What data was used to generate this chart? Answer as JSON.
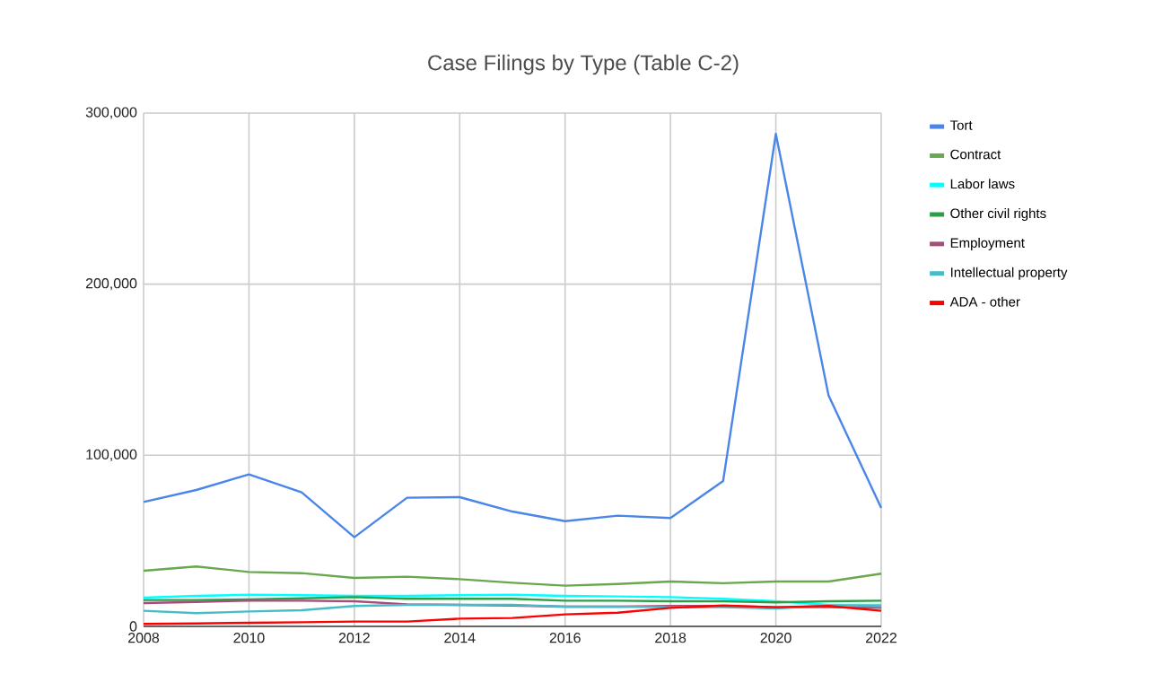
{
  "chart_data": {
    "type": "line",
    "title": "Case Filings by Type (Table C-2)",
    "x": [
      2008,
      2009,
      2010,
      2011,
      2012,
      2013,
      2014,
      2015,
      2016,
      2017,
      2018,
      2019,
      2020,
      2021,
      2022
    ],
    "series": [
      {
        "name": "Tort",
        "color": "#4a86e8",
        "values": [
          72700,
          79700,
          88800,
          78300,
          52100,
          75200,
          75500,
          67100,
          61500,
          64700,
          63300,
          85000,
          287800,
          135000,
          69200
        ]
      },
      {
        "name": "Contract",
        "color": "#6aa84f",
        "values": [
          32500,
          35000,
          31800,
          31100,
          28300,
          29000,
          27600,
          25500,
          23800,
          24800,
          26200,
          25200,
          26200,
          26200,
          30800
        ]
      },
      {
        "name": "Labor laws",
        "color": "#00ffff",
        "values": [
          16800,
          17800,
          18500,
          18200,
          17800,
          17800,
          18200,
          18500,
          17800,
          17500,
          17100,
          16100,
          14700,
          12600,
          12600
        ]
      },
      {
        "name": "Other civil rights",
        "color": "#2e9d48",
        "values": [
          15400,
          15400,
          15700,
          16400,
          17100,
          16100,
          16100,
          16100,
          15000,
          15000,
          14700,
          14700,
          14000,
          14700,
          15000
        ]
      },
      {
        "name": "Employment",
        "color": "#a64d79",
        "values": [
          13600,
          14300,
          15000,
          15000,
          14700,
          12900,
          null,
          12200,
          11500,
          11500,
          11900,
          11900,
          11200,
          11200,
          10800
        ]
      },
      {
        "name": "Intellectual property",
        "color": "#46bdc6",
        "values": [
          9100,
          7700,
          8700,
          9400,
          11900,
          12600,
          12600,
          12600,
          11500,
          11500,
          11200,
          11200,
          10500,
          12200,
          11900
        ]
      },
      {
        "name": "ADA - other",
        "color": "#ff0000",
        "values": [
          1400,
          1700,
          2100,
          2400,
          2800,
          2800,
          4500,
          4900,
          7000,
          8000,
          10800,
          12200,
          11200,
          11900,
          9100
        ]
      }
    ],
    "xlim": [
      2008,
      2022
    ],
    "xticks": [
      2008,
      2010,
      2012,
      2014,
      2016,
      2018,
      2020,
      2022
    ],
    "ylim": [
      0,
      300000
    ],
    "yticks": [
      {
        "value": 0,
        "label": "0"
      },
      {
        "value": 100000,
        "label": "100,000"
      },
      {
        "value": 200000,
        "label": "200,000"
      },
      {
        "value": 300000,
        "label": "300,000"
      }
    ],
    "grid": true,
    "legend": "right",
    "marker": "none",
    "line_style": "solid"
  }
}
